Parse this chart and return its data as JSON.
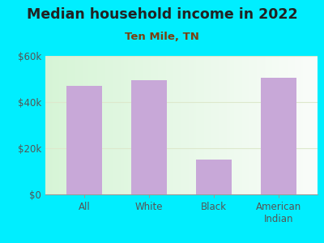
{
  "title": "Median household income in 2022",
  "subtitle": "Ten Mile, TN",
  "categories": [
    "All",
    "White",
    "Black",
    "American\nIndian"
  ],
  "values": [
    47000,
    49500,
    15000,
    50500
  ],
  "bar_color": "#c8a8d8",
  "background_color": "#00EEFF",
  "plot_bg_left": "#d8f0d0",
  "plot_bg_right": "#f5fdf5",
  "ylim": [
    0,
    60000
  ],
  "yticks": [
    0,
    20000,
    40000,
    60000
  ],
  "ytick_labels": [
    "$0",
    "$20k",
    "$40k",
    "$60k"
  ],
  "grid_color": "#dde8cc",
  "title_color": "#222222",
  "subtitle_color": "#7a4010",
  "tick_color": "#555555",
  "title_fontsize": 12.5,
  "subtitle_fontsize": 9.5,
  "tick_fontsize": 8.5
}
